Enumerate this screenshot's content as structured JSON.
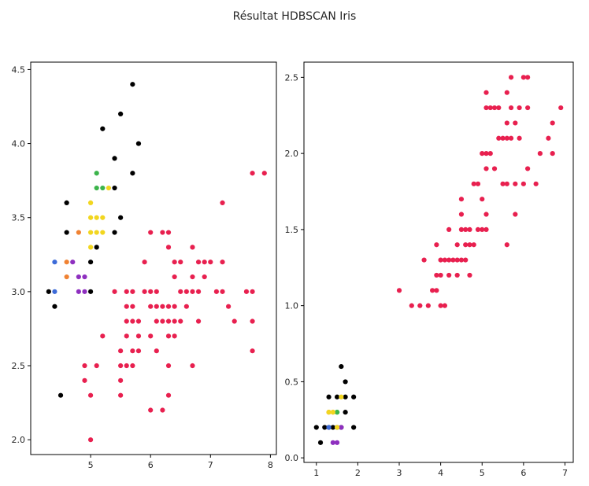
{
  "title": "Résultat HDBSCAN Iris",
  "cluster_colors": {
    "noise": "#000000",
    "c0": "#3d6bd8",
    "c1": "#f08232",
    "c2": "#8e2fbf",
    "c3": "#3cb44b",
    "c4": "#f2d61f",
    "c5": "#e8204f"
  },
  "chart_data": [
    {
      "type": "scatter",
      "title": "",
      "xlabel": "",
      "ylabel": "",
      "xlim": [
        4.0,
        8.1
      ],
      "ylim": [
        1.9,
        4.55
      ],
      "xticks": [
        "5",
        "6",
        "7",
        "8"
      ],
      "yticks": [
        "2.0",
        "2.5",
        "3.0",
        "3.5",
        "4.0",
        "4.5"
      ],
      "grid": false,
      "series": [
        {
          "cluster": "noise",
          "points": [
            [
              4.3,
              3.0
            ],
            [
              4.4,
              2.9
            ],
            [
              4.5,
              2.3
            ],
            [
              4.6,
              3.6
            ],
            [
              4.6,
              3.4
            ],
            [
              5.0,
              3.0
            ],
            [
              5.0,
              3.2
            ],
            [
              5.1,
              3.3
            ],
            [
              5.2,
              4.1
            ],
            [
              5.4,
              3.9
            ],
            [
              5.4,
              3.7
            ],
            [
              5.4,
              3.4
            ],
            [
              5.5,
              4.2
            ],
            [
              5.5,
              3.5
            ],
            [
              5.7,
              4.4
            ],
            [
              5.7,
              3.8
            ],
            [
              5.8,
              4.0
            ]
          ]
        },
        {
          "cluster": "c0",
          "points": [
            [
              4.4,
              3.2
            ],
            [
              4.4,
              3.0
            ]
          ]
        },
        {
          "cluster": "c1",
          "points": [
            [
              4.6,
              3.2
            ],
            [
              4.6,
              3.1
            ],
            [
              4.8,
              3.4
            ]
          ]
        },
        {
          "cluster": "c2",
          "points": [
            [
              4.7,
              3.2
            ],
            [
              4.8,
              3.1
            ],
            [
              4.9,
              3.1
            ],
            [
              4.8,
              3.0
            ],
            [
              4.9,
              3.0
            ]
          ]
        },
        {
          "cluster": "c3",
          "points": [
            [
              5.1,
              3.8
            ],
            [
              5.1,
              3.7
            ],
            [
              5.2,
              3.7
            ]
          ]
        },
        {
          "cluster": "c4",
          "points": [
            [
              5.0,
              3.6
            ],
            [
              5.0,
              3.5
            ],
            [
              5.0,
              3.4
            ],
            [
              5.0,
              3.3
            ],
            [
              5.1,
              3.5
            ],
            [
              5.1,
              3.4
            ],
            [
              5.2,
              3.5
            ],
            [
              5.2,
              3.4
            ],
            [
              5.3,
              3.7
            ]
          ]
        },
        {
          "cluster": "c5",
          "points": [
            [
              4.9,
              2.5
            ],
            [
              4.9,
              2.4
            ],
            [
              5.0,
              2.3
            ],
            [
              5.0,
              2.0
            ],
            [
              5.1,
              2.5
            ],
            [
              5.2,
              2.7
            ],
            [
              5.4,
              3.0
            ],
            [
              5.5,
              2.6
            ],
            [
              5.5,
              2.5
            ],
            [
              5.5,
              2.4
            ],
            [
              5.5,
              2.3
            ],
            [
              5.6,
              3.0
            ],
            [
              5.6,
              2.9
            ],
            [
              5.6,
              2.8
            ],
            [
              5.6,
              2.7
            ],
            [
              5.6,
              2.5
            ],
            [
              5.7,
              3.0
            ],
            [
              5.7,
              2.9
            ],
            [
              5.7,
              2.8
            ],
            [
              5.7,
              2.6
            ],
            [
              5.7,
              2.5
            ],
            [
              5.8,
              2.8
            ],
            [
              5.8,
              2.7
            ],
            [
              5.8,
              2.6
            ],
            [
              5.9,
              3.2
            ],
            [
              5.9,
              3.0
            ],
            [
              6.0,
              3.4
            ],
            [
              6.0,
              3.0
            ],
            [
              6.0,
              2.9
            ],
            [
              6.0,
              2.7
            ],
            [
              6.0,
              2.2
            ],
            [
              6.1,
              3.0
            ],
            [
              6.1,
              2.9
            ],
            [
              6.1,
              2.8
            ],
            [
              6.1,
              2.6
            ],
            [
              6.2,
              3.4
            ],
            [
              6.2,
              2.9
            ],
            [
              6.2,
              2.8
            ],
            [
              6.2,
              2.2
            ],
            [
              6.3,
              3.4
            ],
            [
              6.3,
              3.3
            ],
            [
              6.3,
              2.9
            ],
            [
              6.3,
              2.8
            ],
            [
              6.3,
              2.7
            ],
            [
              6.3,
              2.5
            ],
            [
              6.3,
              2.3
            ],
            [
              6.4,
              3.2
            ],
            [
              6.4,
              3.1
            ],
            [
              6.4,
              2.9
            ],
            [
              6.4,
              2.8
            ],
            [
              6.4,
              2.7
            ],
            [
              6.5,
              3.2
            ],
            [
              6.5,
              3.0
            ],
            [
              6.5,
              2.8
            ],
            [
              6.6,
              3.0
            ],
            [
              6.6,
              2.9
            ],
            [
              6.7,
              3.3
            ],
            [
              6.7,
              3.1
            ],
            [
              6.7,
              3.0
            ],
            [
              6.7,
              2.5
            ],
            [
              6.8,
              3.2
            ],
            [
              6.8,
              3.0
            ],
            [
              6.8,
              2.8
            ],
            [
              6.9,
              3.2
            ],
            [
              6.9,
              3.1
            ],
            [
              7.0,
              3.2
            ],
            [
              7.1,
              3.0
            ],
            [
              7.2,
              3.6
            ],
            [
              7.2,
              3.2
            ],
            [
              7.2,
              3.0
            ],
            [
              7.3,
              2.9
            ],
            [
              7.4,
              2.8
            ],
            [
              7.6,
              3.0
            ],
            [
              7.7,
              3.8
            ],
            [
              7.7,
              3.0
            ],
            [
              7.7,
              2.8
            ],
            [
              7.7,
              2.6
            ],
            [
              7.9,
              3.8
            ]
          ]
        }
      ]
    },
    {
      "type": "scatter",
      "title": "",
      "xlabel": "",
      "ylabel": "",
      "xlim": [
        0.7,
        7.2
      ],
      "ylim": [
        -0.03,
        2.6
      ],
      "xticks": [
        "1",
        "2",
        "3",
        "4",
        "5",
        "6",
        "7"
      ],
      "yticks": [
        "0.0",
        "0.5",
        "1.0",
        "1.5",
        "2.0",
        "2.5"
      ],
      "grid": false,
      "series": [
        {
          "cluster": "noise",
          "points": [
            [
              1.0,
              0.2
            ],
            [
              1.1,
              0.1
            ],
            [
              1.2,
              0.2
            ],
            [
              1.3,
              0.2
            ],
            [
              1.3,
              0.4
            ],
            [
              1.4,
              0.2
            ],
            [
              1.5,
              0.2
            ],
            [
              1.5,
              0.4
            ],
            [
              1.6,
              0.6
            ],
            [
              1.6,
              0.2
            ],
            [
              1.7,
              0.5
            ],
            [
              1.7,
              0.4
            ],
            [
              1.7,
              0.3
            ],
            [
              1.9,
              0.4
            ],
            [
              1.9,
              0.2
            ]
          ]
        },
        {
          "cluster": "c0",
          "points": [
            [
              1.3,
              0.2
            ]
          ]
        },
        {
          "cluster": "c1",
          "points": [
            [
              1.4,
              0.3
            ],
            [
              1.3,
              0.3
            ]
          ]
        },
        {
          "cluster": "c2",
          "points": [
            [
              1.4,
              0.1
            ],
            [
              1.5,
              0.1
            ],
            [
              1.6,
              0.2
            ]
          ]
        },
        {
          "cluster": "c3",
          "points": [
            [
              1.5,
              0.3
            ],
            [
              1.5,
              0.3
            ]
          ]
        },
        {
          "cluster": "c4",
          "points": [
            [
              1.3,
              0.3
            ],
            [
              1.4,
              0.3
            ],
            [
              1.5,
              0.2
            ],
            [
              1.6,
              0.4
            ]
          ]
        },
        {
          "cluster": "c5",
          "points": [
            [
              3.0,
              1.1
            ],
            [
              3.3,
              1.0
            ],
            [
              3.5,
              1.0
            ],
            [
              3.6,
              1.3
            ],
            [
              3.7,
              1.0
            ],
            [
              3.8,
              1.1
            ],
            [
              3.9,
              1.1
            ],
            [
              3.9,
              1.2
            ],
            [
              3.9,
              1.4
            ],
            [
              4.0,
              1.0
            ],
            [
              4.0,
              1.2
            ],
            [
              4.0,
              1.3
            ],
            [
              4.1,
              1.0
            ],
            [
              4.1,
              1.3
            ],
            [
              4.2,
              1.2
            ],
            [
              4.2,
              1.3
            ],
            [
              4.2,
              1.5
            ],
            [
              4.3,
              1.3
            ],
            [
              4.4,
              1.2
            ],
            [
              4.4,
              1.3
            ],
            [
              4.4,
              1.4
            ],
            [
              4.5,
              1.3
            ],
            [
              4.5,
              1.5
            ],
            [
              4.5,
              1.6
            ],
            [
              4.5,
              1.7
            ],
            [
              4.6,
              1.3
            ],
            [
              4.6,
              1.4
            ],
            [
              4.6,
              1.5
            ],
            [
              4.7,
              1.2
            ],
            [
              4.7,
              1.4
            ],
            [
              4.7,
              1.5
            ],
            [
              4.8,
              1.4
            ],
            [
              4.8,
              1.8
            ],
            [
              4.9,
              1.5
            ],
            [
              4.9,
              1.8
            ],
            [
              5.0,
              1.5
            ],
            [
              5.0,
              1.7
            ],
            [
              5.0,
              2.0
            ],
            [
              5.1,
              1.5
            ],
            [
              5.1,
              1.6
            ],
            [
              5.1,
              1.9
            ],
            [
              5.1,
              2.0
            ],
            [
              5.1,
              2.3
            ],
            [
              5.1,
              2.4
            ],
            [
              5.2,
              2.0
            ],
            [
              5.2,
              2.3
            ],
            [
              5.3,
              1.9
            ],
            [
              5.3,
              2.3
            ],
            [
              5.4,
              2.1
            ],
            [
              5.4,
              2.3
            ],
            [
              5.5,
              1.8
            ],
            [
              5.5,
              2.1
            ],
            [
              5.6,
              1.4
            ],
            [
              5.6,
              1.8
            ],
            [
              5.6,
              2.1
            ],
            [
              5.6,
              2.2
            ],
            [
              5.6,
              2.4
            ],
            [
              5.7,
              2.1
            ],
            [
              5.7,
              2.3
            ],
            [
              5.7,
              2.5
            ],
            [
              5.8,
              1.6
            ],
            [
              5.8,
              1.8
            ],
            [
              5.8,
              2.2
            ],
            [
              5.9,
              2.1
            ],
            [
              5.9,
              2.3
            ],
            [
              6.0,
              1.8
            ],
            [
              6.0,
              2.5
            ],
            [
              6.1,
              1.9
            ],
            [
              6.1,
              2.3
            ],
            [
              6.1,
              2.5
            ],
            [
              6.3,
              1.8
            ],
            [
              6.4,
              2.0
            ],
            [
              6.6,
              2.1
            ],
            [
              6.7,
              2.0
            ],
            [
              6.7,
              2.2
            ],
            [
              6.9,
              2.3
            ]
          ]
        }
      ]
    }
  ]
}
